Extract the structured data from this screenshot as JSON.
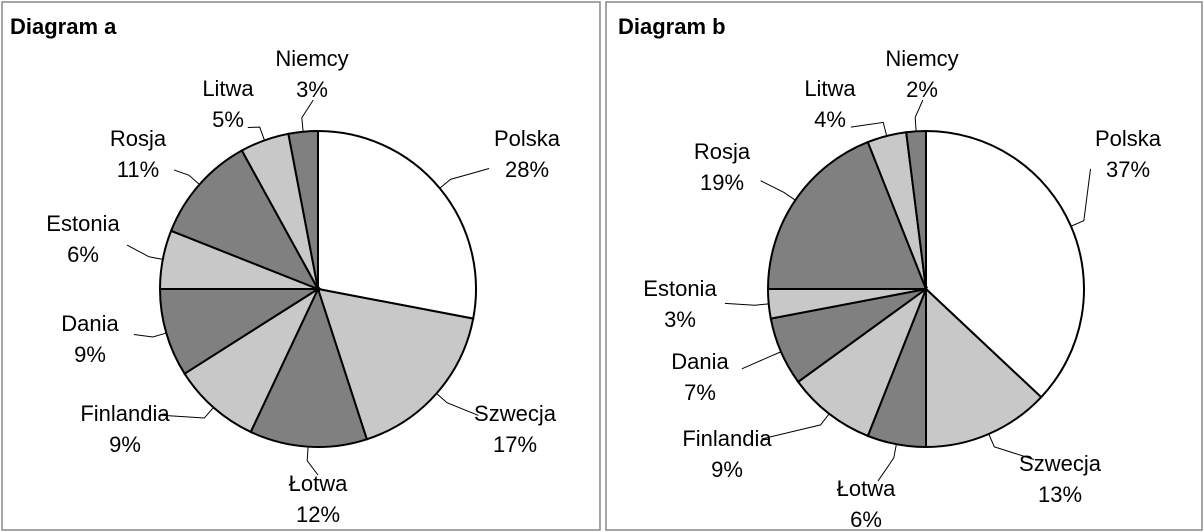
{
  "chart_data": [
    {
      "type": "pie",
      "title": "Diagram a",
      "categories": [
        "Polska",
        "Szwecja",
        "Łotwa",
        "Finlandia",
        "Dania",
        "Estonia",
        "Rosja",
        "Litwa",
        "Niemcy"
      ],
      "values": [
        28,
        17,
        12,
        9,
        9,
        6,
        11,
        5,
        3
      ],
      "value_labels": [
        "28%",
        "17%",
        "12%",
        "9%",
        "9%",
        "6%",
        "11%",
        "5%",
        "3%"
      ],
      "colors": [
        "#ffffff",
        "#c8c8c8",
        "#808080",
        "#c8c8c8",
        "#808080",
        "#c8c8c8",
        "#808080",
        "#c8c8c8",
        "#808080"
      ]
    },
    {
      "type": "pie",
      "title": "Diagram b",
      "categories": [
        "Polska",
        "Szwecja",
        "Łotwa",
        "Finlandia",
        "Dania",
        "Estonia",
        "Rosja",
        "Litwa",
        "Niemcy"
      ],
      "values": [
        37,
        13,
        6,
        9,
        7,
        3,
        19,
        4,
        2
      ],
      "value_labels": [
        "37%",
        "13%",
        "6%",
        "9%",
        "7%",
        "3%",
        "19%",
        "4%",
        "2%"
      ],
      "colors": [
        "#ffffff",
        "#c8c8c8",
        "#808080",
        "#c8c8c8",
        "#808080",
        "#c8c8c8",
        "#808080",
        "#c8c8c8",
        "#808080"
      ]
    }
  ]
}
